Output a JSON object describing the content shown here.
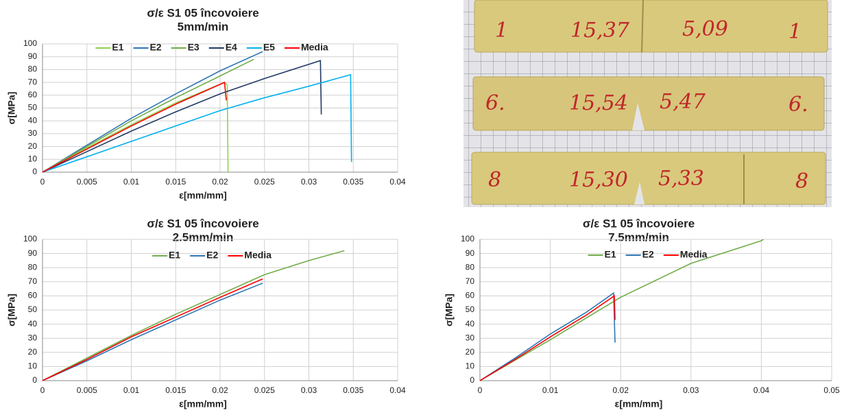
{
  "chart_data": [
    {
      "type": "line",
      "title": "σ/ε S1 05 încovoiere",
      "subtitle": "5mm/min",
      "x_label": "ε[mm/mm]",
      "y_label": "σ[MPa]",
      "xlim": [
        0,
        0.04
      ],
      "xticks": [
        0,
        0.005,
        0.01,
        0.015,
        0.02,
        0.025,
        0.03,
        0.035,
        0.04
      ],
      "ylim": [
        0,
        100
      ],
      "yticks": [
        0,
        10,
        20,
        30,
        40,
        50,
        60,
        70,
        80,
        90,
        100
      ],
      "grid": true,
      "legend": "top",
      "series": [
        {
          "name": "E1",
          "color": "#92d050",
          "x": [
            0,
            0.005,
            0.01,
            0.015,
            0.0205,
            0.0208,
            0.0209
          ],
          "values": [
            0,
            19,
            37,
            54,
            70,
            68,
            0
          ]
        },
        {
          "name": "E2",
          "color": "#2e75b6",
          "x": [
            0,
            0.005,
            0.01,
            0.015,
            0.02,
            0.0248
          ],
          "values": [
            0,
            21,
            42,
            61,
            79,
            94
          ]
        },
        {
          "name": "E3",
          "color": "#70ad47",
          "x": [
            0,
            0.005,
            0.01,
            0.015,
            0.02,
            0.0238
          ],
          "values": [
            0,
            20,
            40,
            58,
            75,
            88
          ]
        },
        {
          "name": "E4",
          "color": "#203864",
          "x": [
            0,
            0.005,
            0.01,
            0.015,
            0.02,
            0.025,
            0.0313,
            0.0314
          ],
          "values": [
            0,
            16,
            32,
            47,
            61,
            73,
            87,
            45
          ]
        },
        {
          "name": "E5",
          "color": "#00b0f0",
          "x": [
            0,
            0.005,
            0.01,
            0.015,
            0.02,
            0.025,
            0.03,
            0.0347,
            0.0348
          ],
          "values": [
            0,
            12,
            24,
            36,
            48,
            58,
            67,
            76,
            8
          ]
        },
        {
          "name": "Media",
          "color": "#ff0000",
          "x": [
            0,
            0.005,
            0.01,
            0.015,
            0.0205,
            0.0207
          ],
          "values": [
            0,
            18,
            36,
            53,
            70,
            56
          ]
        }
      ]
    },
    {
      "type": "line",
      "title": "σ/ε S1 05 încovoiere",
      "subtitle": "2.5mm/min",
      "x_label": "ε[mm/mm]",
      "y_label": "σ[MPa]",
      "xlim": [
        0,
        0.04
      ],
      "xticks": [
        0,
        0.005,
        0.01,
        0.015,
        0.02,
        0.025,
        0.03,
        0.035,
        0.04
      ],
      "ylim": [
        0,
        100
      ],
      "yticks": [
        0,
        10,
        20,
        30,
        40,
        50,
        60,
        70,
        80,
        90,
        100
      ],
      "grid": true,
      "legend": "top",
      "series": [
        {
          "name": "E1",
          "color": "#70ad47",
          "x": [
            0,
            0.005,
            0.01,
            0.015,
            0.02,
            0.025,
            0.03,
            0.034
          ],
          "values": [
            0,
            16,
            32,
            47,
            61,
            75,
            85,
            92
          ]
        },
        {
          "name": "E2",
          "color": "#2e75b6",
          "x": [
            0,
            0.005,
            0.01,
            0.015,
            0.02,
            0.0248
          ],
          "values": [
            0,
            14,
            29,
            43,
            57,
            69
          ]
        },
        {
          "name": "Media",
          "color": "#ff0000",
          "x": [
            0,
            0.005,
            0.01,
            0.015,
            0.02,
            0.0248
          ],
          "values": [
            0,
            15,
            31,
            45,
            59,
            72
          ]
        }
      ]
    },
    {
      "type": "line",
      "title": "σ/ε S1 05 încovoiere",
      "subtitle": "7.5mm/min",
      "x_label": "ε[mm/mm]",
      "y_label": "σ[MPa]",
      "xlim": [
        0,
        0.05
      ],
      "xticks": [
        0,
        0.01,
        0.02,
        0.03,
        0.04,
        0.05
      ],
      "ylim": [
        0,
        100
      ],
      "yticks": [
        0,
        10,
        20,
        30,
        40,
        50,
        60,
        70,
        80,
        90,
        100
      ],
      "grid": true,
      "legend": "top",
      "series": [
        {
          "name": "E1",
          "color": "#70ad47",
          "x": [
            0,
            0.01,
            0.02,
            0.03,
            0.04,
            0.0403
          ],
          "values": [
            0,
            29,
            59,
            83,
            99,
            100
          ]
        },
        {
          "name": "E2",
          "color": "#2e75b6",
          "x": [
            0,
            0.005,
            0.01,
            0.015,
            0.019,
            0.0192
          ],
          "values": [
            0,
            16,
            33,
            48,
            62,
            27
          ]
        },
        {
          "name": "Media",
          "color": "#ff0000",
          "x": [
            0,
            0.005,
            0.01,
            0.015,
            0.0191,
            0.0192
          ],
          "values": [
            0,
            15,
            31,
            46,
            60,
            43
          ]
        }
      ]
    }
  ],
  "photo": {
    "strips": [
      {
        "labels": [
          "1",
          "15,37",
          "5,09",
          "1"
        ]
      },
      {
        "labels": [
          "6.",
          "15,54",
          "5,47",
          "6."
        ]
      },
      {
        "labels": [
          "8",
          "15,30",
          "5,33",
          "8"
        ]
      }
    ]
  }
}
